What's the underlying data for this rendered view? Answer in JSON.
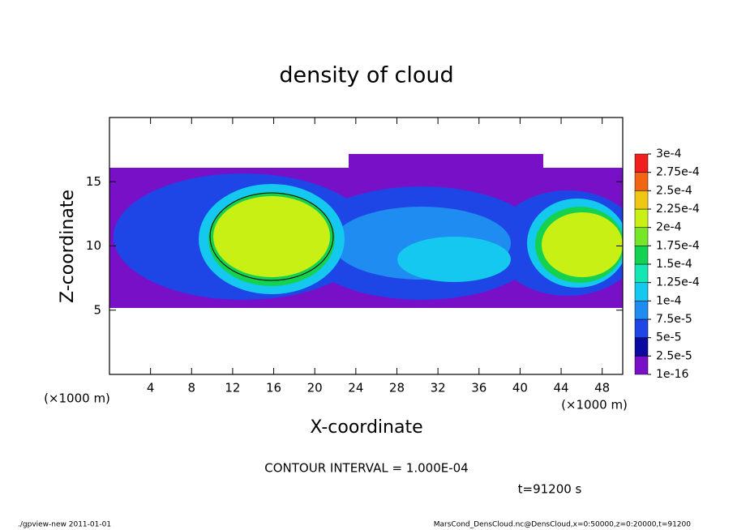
{
  "chart_data": {
    "type": "contour",
    "title": "density of cloud",
    "xlabel": "X-coordinate",
    "ylabel": "Z-coordinate",
    "xunit": "(×1000 m)",
    "yunit": "(×1000 m)",
    "xlim": [
      0,
      50
    ],
    "ylim": [
      0,
      20
    ],
    "xticks": [
      4,
      8,
      12,
      16,
      20,
      24,
      28,
      32,
      36,
      40,
      44,
      48
    ],
    "yticks": [
      5,
      10,
      15
    ],
    "colorbar": {
      "levels": [
        {
          "value": 1e-16,
          "label": "1e-16"
        },
        {
          "value": 2.5e-05,
          "label": "2.5e-5"
        },
        {
          "value": 5e-05,
          "label": "5e-5"
        },
        {
          "value": 7.5e-05,
          "label": "7.5e-5"
        },
        {
          "value": 0.0001,
          "label": "1e-4"
        },
        {
          "value": 0.000125,
          "label": "1.25e-4"
        },
        {
          "value": 0.00015,
          "label": "1.5e-4"
        },
        {
          "value": 0.000175,
          "label": "1.75e-4"
        },
        {
          "value": 0.0002,
          "label": "2e-4"
        },
        {
          "value": 0.000225,
          "label": "2.25e-4"
        },
        {
          "value": 0.00025,
          "label": "2.5e-4"
        },
        {
          "value": 0.000275,
          "label": "2.75e-4"
        },
        {
          "value": 0.0003,
          "label": "3e-4"
        }
      ],
      "colors": [
        "#7810c8",
        "#0a0aa0",
        "#1e46e6",
        "#1e8cf0",
        "#14c8f0",
        "#14e6b4",
        "#14d250",
        "#78e628",
        "#c8f014",
        "#f0c814",
        "#f06414",
        "#f01e1e",
        "#f08c8c"
      ]
    },
    "annotations": [
      "CONTOUR INTERVAL = 1.000E-04",
      "t=91200 s"
    ],
    "footer_left": "./gpview-new   2011-01-01",
    "footer_right": "MarsCond_DensCloud.nc@DensCloud,x=0:50000,z=0:20000,t=91200"
  }
}
